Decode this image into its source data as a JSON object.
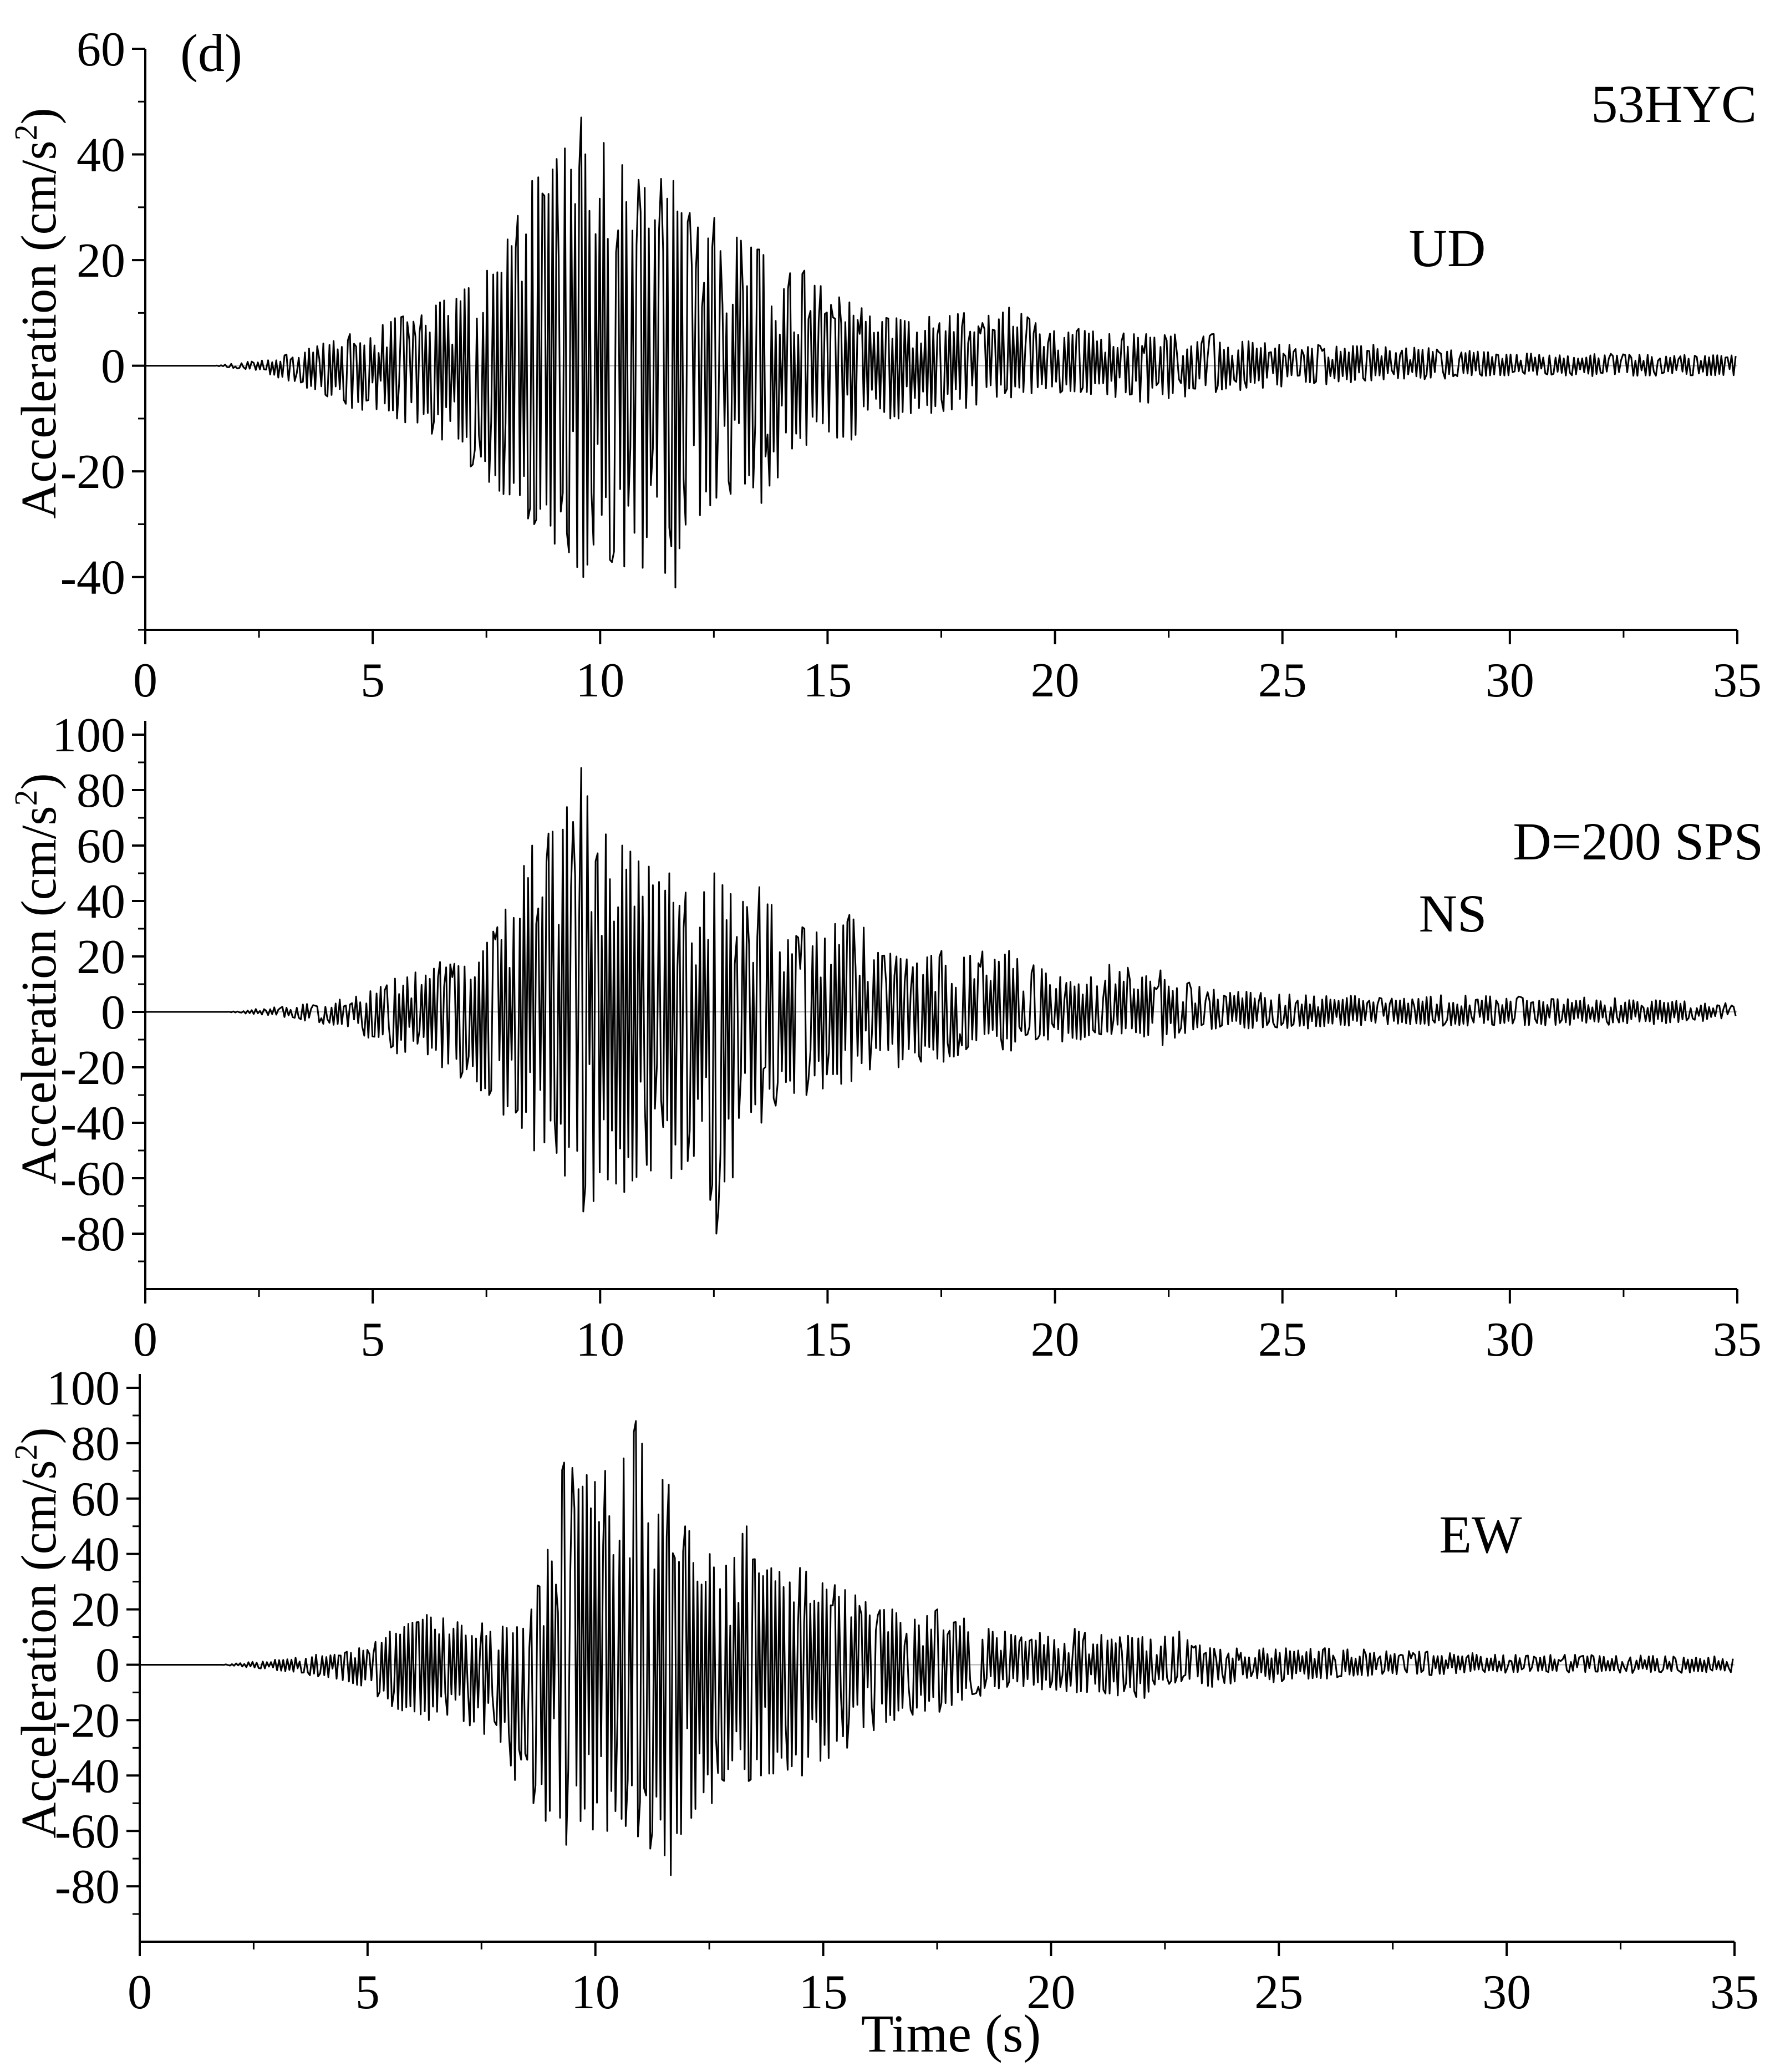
{
  "figure": {
    "panel_label": "(d)",
    "station": "53HYC",
    "sampling_note": "D=200 SPS",
    "xlabel": "Time (s)"
  },
  "chart_data": [
    {
      "type": "line",
      "component": "UD",
      "ylabel": "Acceleration  (cm/s",
      "ylabel_sup": "2",
      "ylabel_close": ")",
      "xlim": [
        0,
        35
      ],
      "ylim": [
        -50,
        60
      ],
      "xticks": [
        0,
        5,
        10,
        15,
        20,
        25,
        30,
        35
      ],
      "yticks": [
        -40,
        -20,
        0,
        20,
        40,
        60
      ],
      "envelope": [
        {
          "t": 0,
          "max": 0,
          "min": 0
        },
        {
          "t": 1.5,
          "max": 0,
          "min": 0
        },
        {
          "t": 2.5,
          "max": 1,
          "min": -1
        },
        {
          "t": 3.5,
          "max": 3,
          "min": -4
        },
        {
          "t": 4.5,
          "max": 6,
          "min": -8
        },
        {
          "t": 5.5,
          "max": 9,
          "min": -10
        },
        {
          "t": 6.5,
          "max": 12,
          "min": -14
        },
        {
          "t": 7.5,
          "max": 18,
          "min": -22
        },
        {
          "t": 8.5,
          "max": 35,
          "min": -30
        },
        {
          "t": 9.6,
          "max": 47,
          "min": -40
        },
        {
          "t": 10.5,
          "max": 38,
          "min": -38
        },
        {
          "t": 11.6,
          "max": 35,
          "min": -42
        },
        {
          "t": 12.5,
          "max": 28,
          "min": -25
        },
        {
          "t": 13.5,
          "max": 22,
          "min": -26
        },
        {
          "t": 14.5,
          "max": 18,
          "min": -15
        },
        {
          "t": 15.5,
          "max": 12,
          "min": -14
        },
        {
          "t": 16.5,
          "max": 9,
          "min": -10
        },
        {
          "t": 18,
          "max": 10,
          "min": -8
        },
        {
          "t": 19,
          "max": 11,
          "min": -6
        },
        {
          "t": 20.5,
          "max": 7,
          "min": -5
        },
        {
          "t": 22,
          "max": 6,
          "min": -7
        },
        {
          "t": 23.5,
          "max": 6,
          "min": -5
        },
        {
          "t": 25,
          "max": 4,
          "min": -4
        },
        {
          "t": 27,
          "max": 4,
          "min": -3
        },
        {
          "t": 30,
          "max": 2.5,
          "min": -2
        },
        {
          "t": 35,
          "max": 2,
          "min": -2
        }
      ]
    },
    {
      "type": "line",
      "component": "NS",
      "ylabel": "Acceleration  (cm/s",
      "ylabel_sup": "2",
      "ylabel_close": ")",
      "xlim": [
        0,
        35
      ],
      "ylim": [
        -100,
        105
      ],
      "xticks": [
        0,
        5,
        10,
        15,
        20,
        25,
        30,
        35
      ],
      "yticks": [
        -80,
        -60,
        -40,
        -20,
        0,
        20,
        40,
        60,
        80,
        100
      ],
      "envelope": [
        {
          "t": 0,
          "max": 0,
          "min": 0
        },
        {
          "t": 1.8,
          "max": 0,
          "min": 0
        },
        {
          "t": 3,
          "max": 2,
          "min": -2
        },
        {
          "t": 4.5,
          "max": 5,
          "min": -6
        },
        {
          "t": 5.5,
          "max": 12,
          "min": -15
        },
        {
          "t": 6.5,
          "max": 18,
          "min": -20
        },
        {
          "t": 7.5,
          "max": 25,
          "min": -30
        },
        {
          "t": 8.5,
          "max": 60,
          "min": -50
        },
        {
          "t": 9.6,
          "max": 88,
          "min": -72
        },
        {
          "t": 10.5,
          "max": 60,
          "min": -65
        },
        {
          "t": 11.5,
          "max": 50,
          "min": -60
        },
        {
          "t": 12.5,
          "max": 50,
          "min": -80
        },
        {
          "t": 13.5,
          "max": 45,
          "min": -40
        },
        {
          "t": 14.5,
          "max": 30,
          "min": -30
        },
        {
          "t": 15.5,
          "max": 35,
          "min": -25
        },
        {
          "t": 16.5,
          "max": 20,
          "min": -20
        },
        {
          "t": 17.5,
          "max": 22,
          "min": -18
        },
        {
          "t": 19,
          "max": 22,
          "min": -14
        },
        {
          "t": 20.5,
          "max": 10,
          "min": -10
        },
        {
          "t": 21.2,
          "max": 17,
          "min": -8
        },
        {
          "t": 22.3,
          "max": 15,
          "min": -12
        },
        {
          "t": 23.5,
          "max": 8,
          "min": -6
        },
        {
          "t": 25.5,
          "max": 6,
          "min": -6
        },
        {
          "t": 28.5,
          "max": 6,
          "min": -5
        },
        {
          "t": 32.5,
          "max": 5,
          "min": -5
        },
        {
          "t": 35,
          "max": 3,
          "min": -3
        }
      ]
    },
    {
      "type": "line",
      "component": "EW",
      "ylabel": "Acceleration  (cm/s",
      "ylabel_sup": "2",
      "ylabel_close": ")",
      "xlim": [
        0,
        35
      ],
      "ylim": [
        -100,
        105
      ],
      "xticks": [
        0,
        5,
        10,
        15,
        20,
        25,
        30,
        35
      ],
      "yticks": [
        -80,
        -60,
        -40,
        -20,
        0,
        20,
        40,
        60,
        80,
        100
      ],
      "envelope": [
        {
          "t": 0,
          "max": 0,
          "min": 0
        },
        {
          "t": 1.8,
          "max": 0,
          "min": 0
        },
        {
          "t": 3,
          "max": 2,
          "min": -2
        },
        {
          "t": 4.5,
          "max": 5,
          "min": -6
        },
        {
          "t": 5.5,
          "max": 12,
          "min": -15
        },
        {
          "t": 6.3,
          "max": 18,
          "min": -20
        },
        {
          "t": 7.5,
          "max": 15,
          "min": -25
        },
        {
          "t": 8.6,
          "max": 20,
          "min": -50
        },
        {
          "t": 9.3,
          "max": 73,
          "min": -65
        },
        {
          "t": 10.2,
          "max": 70,
          "min": -60
        },
        {
          "t": 10.9,
          "max": 88,
          "min": -62
        },
        {
          "t": 11.6,
          "max": 65,
          "min": -76
        },
        {
          "t": 12.5,
          "max": 40,
          "min": -50
        },
        {
          "t": 13.3,
          "max": 50,
          "min": -42
        },
        {
          "t": 14.5,
          "max": 35,
          "min": -40
        },
        {
          "t": 15.5,
          "max": 27,
          "min": -30
        },
        {
          "t": 16.5,
          "max": 20,
          "min": -20
        },
        {
          "t": 17.5,
          "max": 20,
          "min": -17
        },
        {
          "t": 19,
          "max": 12,
          "min": -8
        },
        {
          "t": 20.5,
          "max": 13,
          "min": -10
        },
        {
          "t": 22,
          "max": 10,
          "min": -12
        },
        {
          "t": 22.8,
          "max": 12,
          "min": -6
        },
        {
          "t": 23.5,
          "max": 6,
          "min": -8
        },
        {
          "t": 26,
          "max": 6,
          "min": -5
        },
        {
          "t": 30,
          "max": 4,
          "min": -3
        },
        {
          "t": 35,
          "max": 3,
          "min": -3
        }
      ]
    }
  ]
}
